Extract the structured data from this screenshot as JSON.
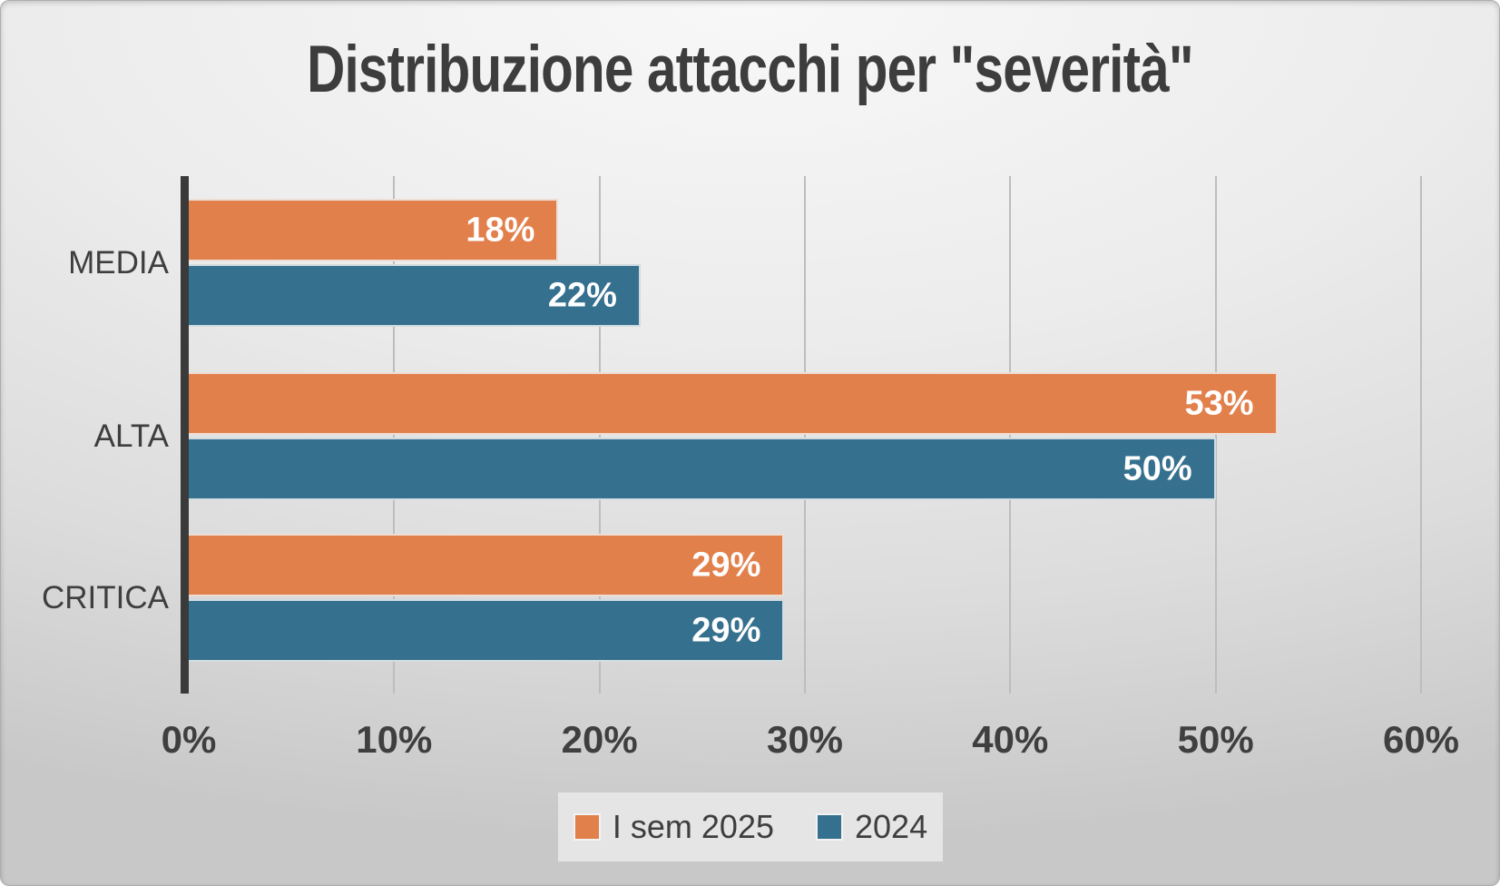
{
  "title": "Distribuzione attacchi per \"severità\"",
  "chart_data": {
    "type": "bar",
    "orientation": "horizontal",
    "title": "Distribuzione attacchi per \"severità\"",
    "categories": [
      "MEDIA",
      "ALTA",
      "CRITICA"
    ],
    "series": [
      {
        "name": "I sem 2025",
        "color": "#E2804C",
        "values": [
          18,
          53,
          29
        ],
        "data_labels": [
          "18%",
          "53%",
          "29%"
        ]
      },
      {
        "name": "2024",
        "color": "#35708E",
        "values": [
          22,
          50,
          29
        ],
        "data_labels": [
          "22%",
          "50%",
          "29%"
        ]
      }
    ],
    "x_ticks": [
      "0%",
      "10%",
      "20%",
      "30%",
      "40%",
      "50%",
      "60%"
    ],
    "xlim": [
      0,
      60
    ],
    "grid": true,
    "legend_position": "bottom",
    "data_label_position": "inside-end"
  },
  "colors": {
    "text": "#3E3E3E",
    "axis_line": "#3A3A3A",
    "gridline": "#BDBDBD",
    "data_label_text": "#FFFFFF",
    "legend_background": "#E5E5E5"
  }
}
